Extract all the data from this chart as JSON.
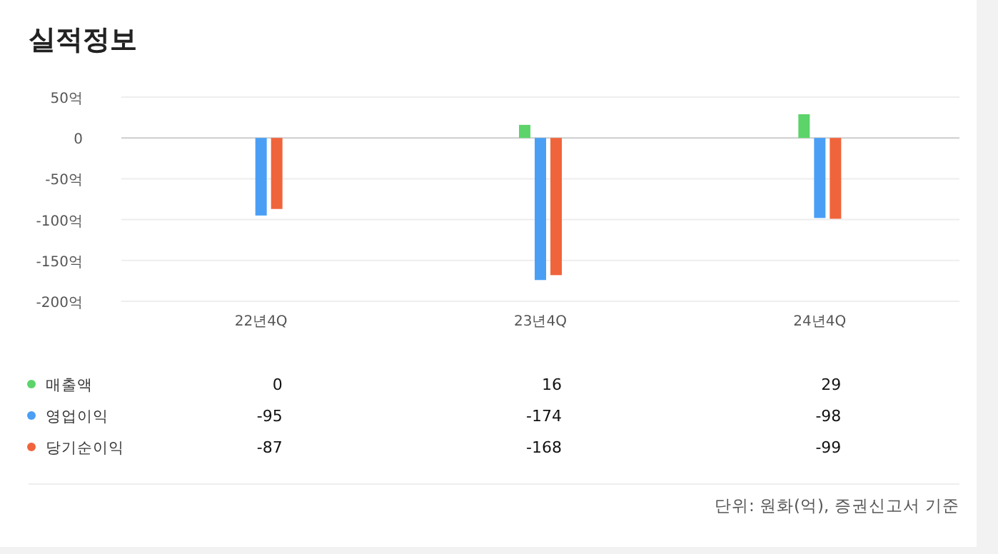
{
  "chart_data": {
    "type": "bar",
    "title": "실적정보",
    "categories": [
      "22년4Q",
      "23년4Q",
      "24년4Q"
    ],
    "series": [
      {
        "name": "매출액",
        "color": "#5cd46a",
        "values": [
          0,
          16,
          29
        ]
      },
      {
        "name": "영업이익",
        "color": "#4a9ff5",
        "values": [
          -95,
          -174,
          -98
        ]
      },
      {
        "name": "당기순이익",
        "color": "#f0643c",
        "values": [
          -87,
          -168,
          -99
        ]
      }
    ],
    "ylim": [
      -200,
      50
    ],
    "yticks": [
      {
        "value": 50,
        "label": "50억"
      },
      0,
      {
        "value": -50,
        "label": "-50억"
      },
      {
        "value": -100,
        "label": "-100억"
      },
      {
        "value": -150,
        "label": "-150억"
      },
      {
        "value": -200,
        "label": "-200억"
      }
    ],
    "grid": "y",
    "legend": "bottom",
    "data_labels": true,
    "annotations": [
      "단위: 원화(억), 증권신고서 기준"
    ]
  }
}
